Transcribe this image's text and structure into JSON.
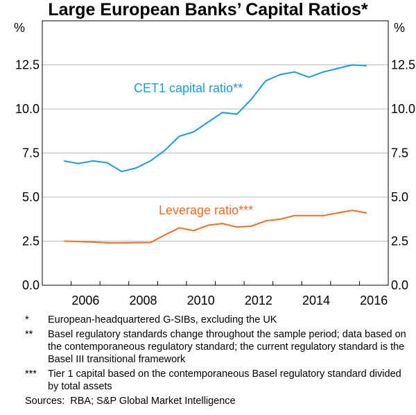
{
  "chart_data": {
    "type": "line",
    "title": "Large European Banks’ Capital Ratios*",
    "ylabel_left": "%",
    "ylabel_right": "%",
    "ylim": [
      0,
      15
    ],
    "xlim": [
      2005,
      2017
    ],
    "yticks": [
      "0.0",
      "2.5",
      "5.0",
      "7.5",
      "10.0",
      "12.5"
    ],
    "xticks": [
      "2006",
      "2008",
      "2010",
      "2012",
      "2014",
      "2016"
    ],
    "series": [
      {
        "name": "CET1 capital ratio**",
        "color": "#1a9ad6",
        "x": [
          2005.75,
          2006.25,
          2006.75,
          2007.25,
          2007.75,
          2008.25,
          2008.75,
          2009.25,
          2009.75,
          2010.25,
          2010.75,
          2011.25,
          2011.75,
          2012.25,
          2012.75,
          2013.25,
          2013.75,
          2014.25,
          2014.75,
          2015.25,
          2015.75,
          2016.25
        ],
        "values": [
          7.05,
          6.9,
          7.05,
          6.95,
          6.45,
          6.65,
          7.05,
          7.65,
          8.45,
          8.7,
          9.25,
          9.8,
          9.7,
          10.55,
          11.6,
          11.95,
          12.1,
          11.8,
          12.1,
          12.3,
          12.5,
          12.45
        ]
      },
      {
        "name": "Leverage ratio***",
        "color": "#f26b21",
        "x": [
          2005.75,
          2006.25,
          2006.75,
          2007.25,
          2007.75,
          2008.25,
          2008.75,
          2009.25,
          2009.75,
          2010.25,
          2010.75,
          2011.25,
          2011.75,
          2012.25,
          2012.75,
          2013.25,
          2013.75,
          2014.25,
          2014.75,
          2015.25,
          2015.75,
          2016.25
        ],
        "values": [
          2.5,
          2.48,
          2.45,
          2.4,
          2.4,
          2.41,
          2.42,
          2.85,
          3.25,
          3.1,
          3.4,
          3.5,
          3.3,
          3.35,
          3.65,
          3.75,
          3.95,
          3.95,
          3.95,
          4.1,
          4.25,
          4.1
        ]
      }
    ]
  },
  "notes": [
    {
      "mark": "*",
      "text": "European-headquartered G-SIBs, excluding the UK"
    },
    {
      "mark": "**",
      "text": "Basel regulatory standards change throughout the sample period; data based on the contemporaneous regulatory standard; the current regulatory standard is the Basel III transitional framework"
    },
    {
      "mark": "***",
      "text": "Tier 1 capital based on the contemporaneous Basel regulatory standard divided by total assets"
    }
  ],
  "sources": "Sources:  RBA; S&P Global Market Intelligence"
}
